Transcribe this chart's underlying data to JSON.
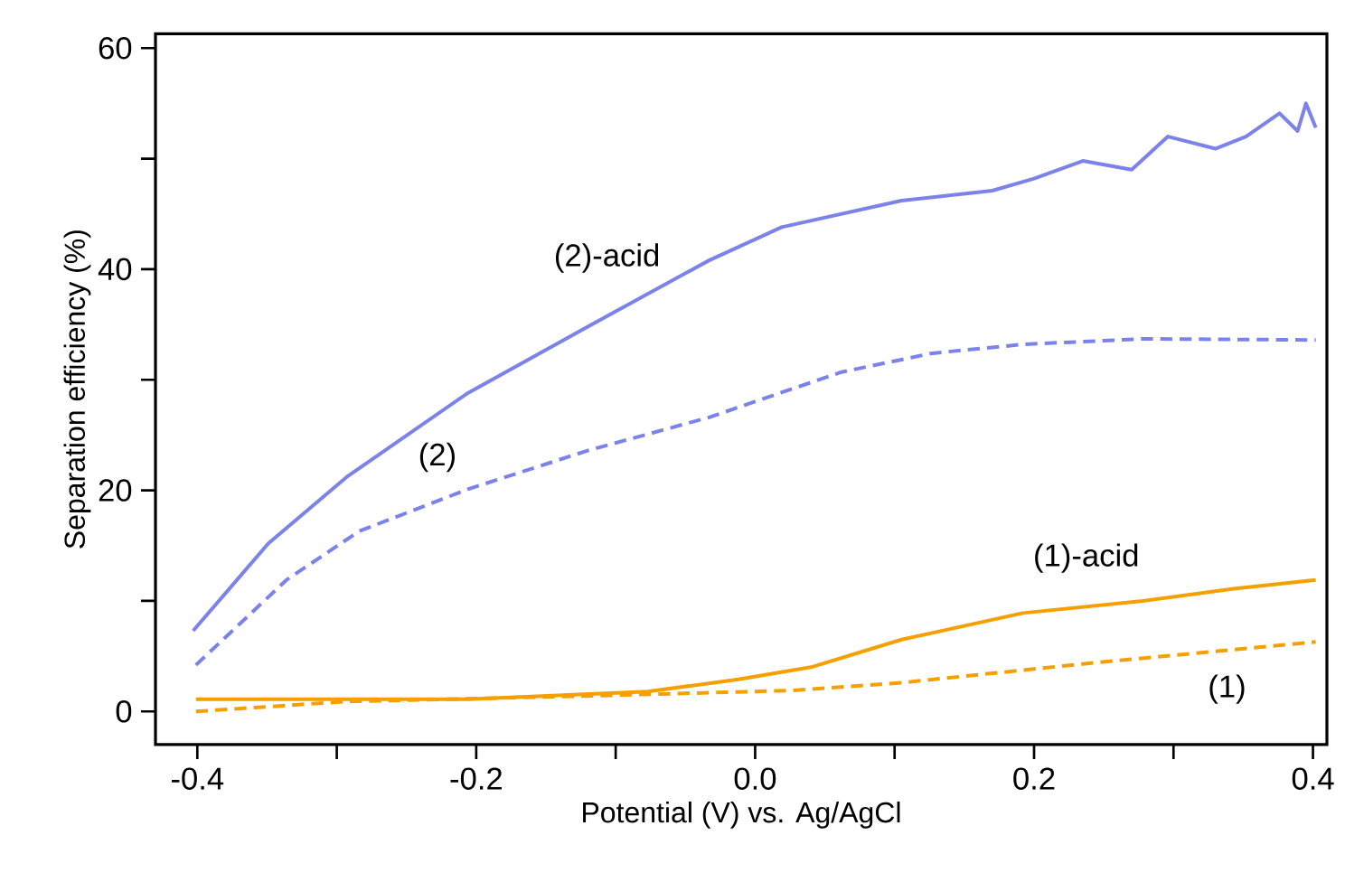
{
  "chart_data": {
    "type": "line",
    "xlabel": "Potential (V) vs. Ag/AgCl",
    "ylabel": "Separation efficiency (%)",
    "xlim": [
      -0.43,
      0.41
    ],
    "ylim": [
      -3,
      61.3
    ],
    "xticks": [
      {
        "value": -0.4,
        "label": "-0.4"
      },
      {
        "value": -0.3,
        "label": null
      },
      {
        "value": -0.2,
        "label": "-0.2"
      },
      {
        "value": -0.1,
        "label": null
      },
      {
        "value": 0.0,
        "label": "0.0"
      },
      {
        "value": 0.1,
        "label": null
      },
      {
        "value": 0.2,
        "label": "0.2"
      },
      {
        "value": 0.3,
        "label": null
      },
      {
        "value": 0.4,
        "label": "0.4"
      }
    ],
    "yticks": [
      0,
      {
        "value": 10,
        "label": null
      },
      20,
      {
        "value": 30,
        "label": null
      },
      40,
      {
        "value": 50,
        "label": null
      },
      60
    ],
    "grid": false,
    "legend": false,
    "marker": "none",
    "series": [
      {
        "name": "(2)-acid",
        "color": "#7b83eb",
        "line_style": "solid",
        "x": [
          -0.403,
          -0.349,
          -0.293,
          -0.206,
          -0.12,
          -0.033,
          0.019,
          0.105,
          0.17,
          0.2,
          0.235,
          0.27,
          0.296,
          0.33,
          0.352,
          0.376,
          0.389,
          0.395,
          0.402
        ],
        "values": [
          7.3,
          15.2,
          21.2,
          28.8,
          34.8,
          40.8,
          43.8,
          46.2,
          47.1,
          48.2,
          49.8,
          49.0,
          52.0,
          50.9,
          52.0,
          54.1,
          52.5,
          55.0,
          52.8
        ]
      },
      {
        "name": "(2)",
        "color": "#7b83eb",
        "line_style": "dashed",
        "x": [
          -0.401,
          -0.336,
          -0.284,
          -0.206,
          -0.12,
          -0.033,
          0.027,
          0.062,
          0.127,
          0.192,
          0.278,
          0.402
        ],
        "values": [
          4.2,
          11.9,
          16.3,
          20.1,
          23.6,
          26.6,
          29.2,
          30.7,
          32.4,
          33.2,
          33.7,
          33.6
        ]
      },
      {
        "name": "(1)-acid",
        "color": "#f5a000",
        "line_style": "solid",
        "x": [
          -0.401,
          -0.206,
          -0.077,
          -0.012,
          0.04,
          0.105,
          0.192,
          0.278,
          0.343,
          0.402
        ],
        "values": [
          1.1,
          1.1,
          1.8,
          2.9,
          4.0,
          6.5,
          8.9,
          10.0,
          11.1,
          11.9
        ]
      },
      {
        "name": "(1)",
        "color": "#f5a000",
        "line_style": "dashed",
        "x": [
          -0.401,
          -0.293,
          -0.12,
          0.027,
          0.105,
          0.235,
          0.402
        ],
        "values": [
          0.0,
          0.9,
          1.4,
          1.9,
          2.6,
          4.3,
          6.3
        ]
      }
    ]
  }
}
